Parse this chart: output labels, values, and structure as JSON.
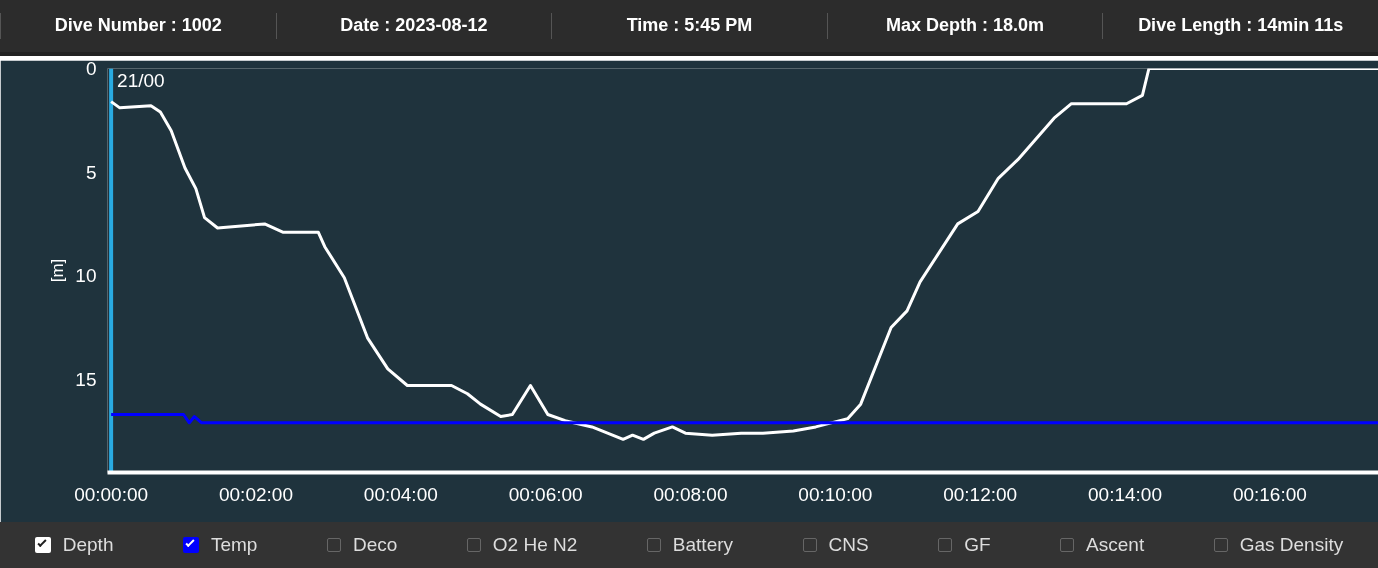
{
  "chart_data": {
    "type": "line",
    "ylabel": "[m]",
    "xlim": [
      -0.05,
      17.5
    ],
    "ylim": [
      19.5,
      0
    ],
    "xticks": [
      {
        "value": 0,
        "label": "00:00:00"
      },
      {
        "value": 2,
        "label": "00:02:00"
      },
      {
        "value": 4,
        "label": "00:04:00"
      },
      {
        "value": 6,
        "label": "00:06:00"
      },
      {
        "value": 8,
        "label": "00:08:00"
      },
      {
        "value": 10,
        "label": "00:10:00"
      },
      {
        "value": 12,
        "label": "00:12:00"
      },
      {
        "value": 14,
        "label": "00:14:00"
      },
      {
        "value": 16,
        "label": "00:16:00"
      }
    ],
    "yticks": [
      0,
      5,
      10,
      15
    ],
    "grid": false,
    "legend": "bottom",
    "marker": "none",
    "line_style": "solid",
    "series": [
      {
        "name": "Depth",
        "color": "#ffffff",
        "x": [
          0,
          0.12,
          0.55,
          0.68,
          0.83,
          1.02,
          1.17,
          1.29,
          1.47,
          2.12,
          2.37,
          2.86,
          2.95,
          3.22,
          3.54,
          3.82,
          4.09,
          4.7,
          4.92,
          5.1,
          5.38,
          5.54,
          5.79,
          6.03,
          6.27,
          6.64,
          7.07,
          7.2,
          7.35,
          7.5,
          7.75,
          7.93,
          8.3,
          8.7,
          9.0,
          9.42,
          9.73,
          10.17,
          10.35,
          10.77,
          10.99,
          11.17,
          11.69,
          11.97,
          12.25,
          12.52,
          13.02,
          13.26,
          14.02,
          14.24,
          14.33,
          17.5
        ],
        "values": [
          1.6,
          1.9,
          1.8,
          2.1,
          3.0,
          4.8,
          5.8,
          7.2,
          7.7,
          7.5,
          7.9,
          7.9,
          8.6,
          10.1,
          13.0,
          14.5,
          15.3,
          15.3,
          15.7,
          16.2,
          16.8,
          16.7,
          15.3,
          16.7,
          17.0,
          17.3,
          17.9,
          17.7,
          17.9,
          17.6,
          17.3,
          17.6,
          17.7,
          17.6,
          17.6,
          17.5,
          17.3,
          16.9,
          16.2,
          12.5,
          11.7,
          10.3,
          7.5,
          6.9,
          5.3,
          4.4,
          2.4,
          1.7,
          1.7,
          1.3,
          0,
          0
        ]
      },
      {
        "name": "Temp",
        "color": "#0000ff",
        "x": [
          0,
          1.0,
          1.08,
          1.15,
          1.25,
          17.5
        ],
        "values": [
          16.7,
          16.7,
          17.1,
          16.8,
          17.1,
          17.1
        ]
      }
    ],
    "ref_lines": [
      {
        "axis": "x",
        "value": 0,
        "label": "21/00",
        "color": "#29abe2"
      }
    ],
    "annotations": [
      "Dive Number : 1002",
      "Date : 2023-08-12",
      "Time : 5:45 PM",
      "Max Depth : 18.0m",
      "Dive Length : 14min 11s",
      "Deco",
      "O2 He N2",
      "Battery",
      "CNS",
      "GF",
      "Ascent",
      "Gas Density"
    ]
  }
}
